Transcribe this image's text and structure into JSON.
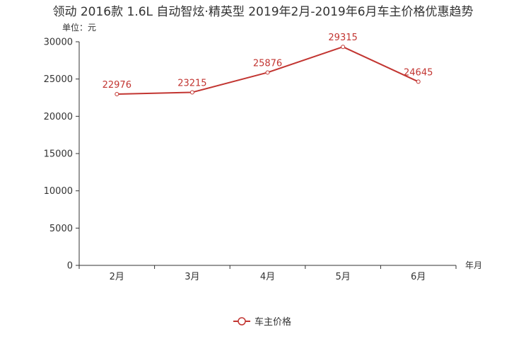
{
  "chart_data": {
    "type": "line",
    "title": "领动 2016款 1.6L 自动智炫·精英型 2019年2月-2019年6月车主价格优惠趋势",
    "ylabel": "单位：元",
    "xlabel": "年月",
    "categories": [
      "2月",
      "3月",
      "4月",
      "5月",
      "6月"
    ],
    "ylim": [
      0,
      30000
    ],
    "yticks": [
      "0",
      "5000",
      "10000",
      "15000",
      "20000",
      "25000",
      "30000"
    ],
    "grid": false,
    "legend_position": "bottom-center",
    "series": [
      {
        "name": "车主价格",
        "values": [
          22976,
          23215,
          25876,
          29315,
          24645
        ],
        "color": "#c23531"
      }
    ]
  }
}
